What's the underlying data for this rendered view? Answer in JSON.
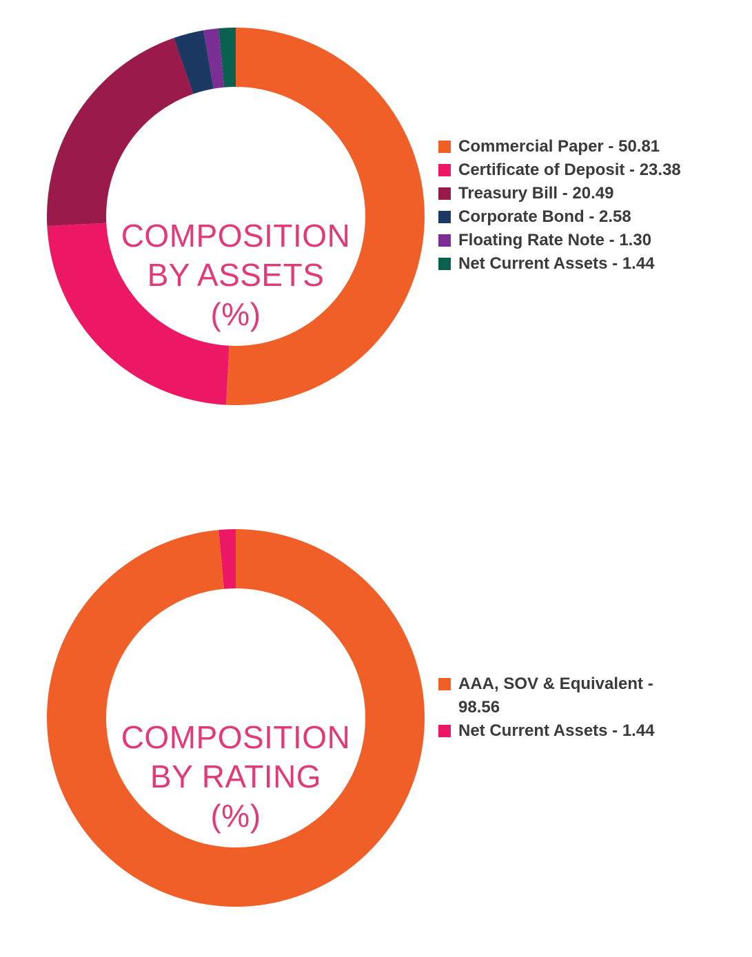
{
  "chart_data": [
    {
      "type": "pie",
      "donut": true,
      "center_text": [
        "COMPOSITION",
        "BY ASSETS",
        "(%)"
      ],
      "categories": [
        "Commercial Paper",
        "Certificate of Deposit",
        "Treasury Bill",
        "Corporate Bond",
        "Floating Rate Note",
        "Net Current Assets"
      ],
      "values": [
        50.81,
        23.38,
        20.49,
        2.58,
        1.3,
        1.44
      ],
      "legend_labels": [
        "Commercial Paper - 50.81",
        "Certificate of Deposit - 23.38",
        "Treasury Bill - 20.49",
        "Corporate Bond - 2.58",
        "Floating Rate Note - 1.30",
        "Net Current Assets - 1.44"
      ],
      "colors": [
        "#f15f29",
        "#ec1865",
        "#9a1a4b",
        "#1b3963",
        "#7b2e94",
        "#0b6150"
      ],
      "legend_placement": "right"
    },
    {
      "type": "pie",
      "donut": true,
      "center_text": [
        "COMPOSITION",
        "BY RATING",
        "(%)"
      ],
      "categories": [
        "AAA, SOV & Equivalent",
        "Net Current Assets"
      ],
      "values": [
        98.56,
        1.44
      ],
      "legend_labels": [
        "AAA, SOV & Equivalent - 98.56",
        "Net Current Assets - 1.44"
      ],
      "colors": [
        "#f15f29",
        "#ec1865"
      ],
      "legend_placement": "right"
    }
  ]
}
